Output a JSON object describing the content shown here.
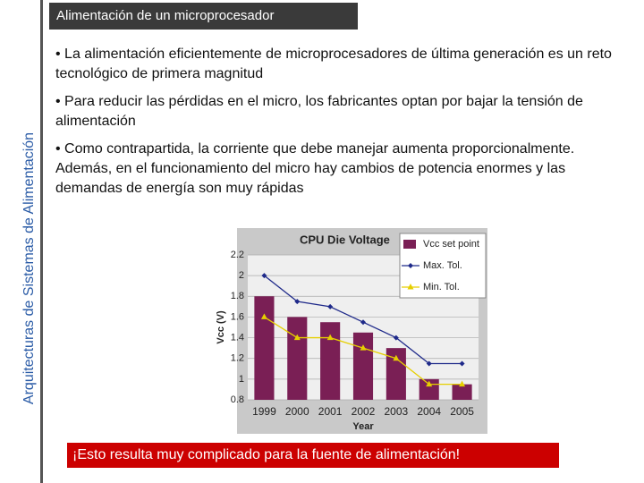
{
  "header": {
    "title": "Alimentación de un microprocesador"
  },
  "sidebar": {
    "text": "Arquitecturas de Sistemas de Alimentación"
  },
  "bullets": [
    "• La alimentación eficientemente de microprocesadores de última generación es un reto tecnológico de primera magnitud",
    "• Para reducir las pérdidas en el micro, los fabricantes optan por bajar la tensión de alimentación",
    "• Como contrapartida, la corriente que debe manejar aumenta proporcionalmente. Además, en el funcionamiento del micro hay cambios de potencia enormes y las demandas de energía son muy rápidas"
  ],
  "chart_data": {
    "type": "bar",
    "title": "CPU Die Voltage",
    "x_label": "Year",
    "y_label": "Vcc (V)",
    "categories": [
      "1999",
      "2000",
      "2001",
      "2002",
      "2003",
      "2004",
      "2005"
    ],
    "series": [
      {
        "name": "Vcc set point",
        "type": "bar",
        "color": "#7a1f55",
        "values": [
          1.8,
          1.6,
          1.55,
          1.45,
          1.3,
          1.0,
          0.95
        ]
      },
      {
        "name": "Max. Tol.",
        "type": "line",
        "color": "#1f2a8a",
        "values": [
          2.0,
          1.75,
          1.7,
          1.55,
          1.4,
          1.15,
          1.15
        ]
      },
      {
        "name": "Min. Tol.",
        "type": "line",
        "color": "#e6cf00",
        "values": [
          1.6,
          1.4,
          1.4,
          1.3,
          1.2,
          0.95,
          0.95
        ]
      }
    ],
    "ylim": [
      0.8,
      2.2
    ],
    "yticks": [
      0.8,
      1,
      1.2,
      1.4,
      1.6,
      1.8,
      2,
      2.2
    ],
    "grid": true
  },
  "callout": {
    "text": "¡Esto resulta muy complicado para la fuente de alimentación!"
  }
}
